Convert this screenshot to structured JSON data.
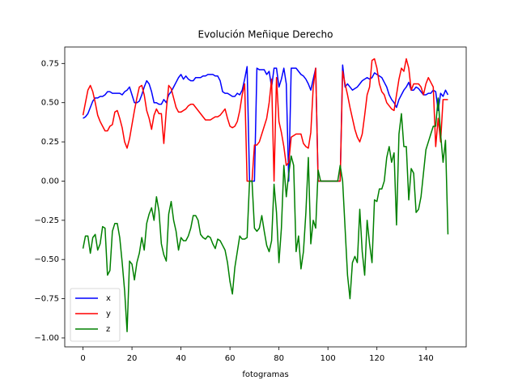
{
  "chart_data": {
    "type": "line",
    "title": "Evolución Meñique Derecho",
    "x_label": "fotogramas",
    "x": [
      0,
      1,
      2,
      3,
      4,
      5,
      6,
      7,
      8,
      9,
      10,
      11,
      12,
      13,
      14,
      15,
      16,
      17,
      18,
      19,
      20,
      21,
      22,
      23,
      24,
      25,
      26,
      27,
      28,
      29,
      30,
      31,
      32,
      33,
      34,
      35,
      36,
      37,
      38,
      39,
      40,
      41,
      42,
      43,
      44,
      45,
      46,
      47,
      48,
      49,
      50,
      51,
      52,
      53,
      54,
      55,
      56,
      57,
      58,
      59,
      60,
      61,
      62,
      63,
      64,
      65,
      66,
      67,
      68,
      69,
      70,
      71,
      72,
      73,
      74,
      75,
      76,
      77,
      78,
      79,
      80,
      81,
      82,
      83,
      84,
      85,
      86,
      87,
      88,
      89,
      90,
      91,
      92,
      93,
      94,
      95,
      96,
      97,
      98,
      99,
      100,
      101,
      102,
      103,
      104,
      105,
      106,
      107,
      108,
      109,
      110,
      111,
      112,
      113,
      114,
      115,
      116,
      117,
      118,
      119,
      120,
      121,
      122,
      123,
      124,
      125,
      126,
      127,
      128,
      129,
      130,
      131,
      132,
      133,
      134,
      135,
      136,
      137,
      138,
      139,
      140,
      141,
      142,
      143,
      144,
      145,
      146,
      147,
      148,
      149
    ],
    "series": [
      {
        "name": "x",
        "color": "#0000ff",
        "values": [
          0.4,
          0.41,
          0.43,
          0.47,
          0.51,
          0.53,
          0.53,
          0.54,
          0.54,
          0.55,
          0.57,
          0.57,
          0.56,
          0.56,
          0.56,
          0.56,
          0.55,
          0.57,
          0.58,
          0.6,
          0.55,
          0.5,
          0.5,
          0.51,
          0.55,
          0.6,
          0.64,
          0.62,
          0.57,
          0.5,
          0.5,
          0.49,
          0.49,
          0.52,
          0.5,
          0.55,
          0.57,
          0.6,
          0.63,
          0.66,
          0.68,
          0.65,
          0.67,
          0.65,
          0.64,
          0.64,
          0.66,
          0.66,
          0.66,
          0.67,
          0.67,
          0.68,
          0.68,
          0.68,
          0.67,
          0.67,
          0.64,
          0.57,
          0.56,
          0.56,
          0.55,
          0.54,
          0.54,
          0.56,
          0.55,
          0.58,
          0.65,
          0.73,
          0.0,
          0.0,
          0.0,
          0.72,
          0.71,
          0.71,
          0.71,
          0.68,
          0.7,
          0.6,
          0.72,
          0.72,
          0.6,
          0.65,
          0.72,
          0.62,
          0.0,
          0.72,
          0.72,
          0.72,
          0.7,
          0.68,
          0.67,
          0.65,
          0.62,
          0.58,
          0.65,
          0.72,
          0.0,
          0.0,
          0.0,
          0.0,
          0.0,
          0.0,
          0.0,
          0.0,
          0.0,
          0.0,
          0.74,
          0.6,
          0.62,
          0.6,
          0.58,
          0.59,
          0.6,
          0.62,
          0.64,
          0.65,
          0.66,
          0.65,
          0.66,
          0.69,
          0.68,
          0.67,
          0.66,
          0.63,
          0.6,
          0.55,
          0.52,
          0.5,
          0.47,
          0.52,
          0.55,
          0.58,
          0.6,
          0.63,
          0.58,
          0.58,
          0.6,
          0.59,
          0.57,
          0.55,
          0.55,
          0.56,
          0.56,
          0.58,
          0.57,
          0.45,
          0.56,
          0.54,
          0.58,
          0.55
        ]
      },
      {
        "name": "y",
        "color": "#ff0000",
        "values": [
          0.42,
          0.5,
          0.58,
          0.61,
          0.57,
          0.5,
          0.42,
          0.38,
          0.35,
          0.32,
          0.32,
          0.35,
          0.36,
          0.44,
          0.45,
          0.4,
          0.34,
          0.25,
          0.21,
          0.27,
          0.36,
          0.45,
          0.53,
          0.6,
          0.61,
          0.55,
          0.45,
          0.4,
          0.33,
          0.42,
          0.46,
          0.43,
          0.43,
          0.24,
          0.45,
          0.61,
          0.59,
          0.53,
          0.47,
          0.44,
          0.44,
          0.45,
          0.46,
          0.48,
          0.49,
          0.49,
          0.47,
          0.45,
          0.43,
          0.41,
          0.39,
          0.39,
          0.39,
          0.4,
          0.41,
          0.41,
          0.42,
          0.44,
          0.46,
          0.4,
          0.35,
          0.34,
          0.35,
          0.38,
          0.45,
          0.55,
          0.62,
          0.0,
          0.0,
          0.0,
          0.23,
          0.23,
          0.25,
          0.3,
          0.35,
          0.4,
          0.5,
          0.65,
          0.0,
          0.66,
          0.38,
          0.31,
          0.22,
          0.1,
          0.12,
          0.28,
          0.29,
          0.3,
          0.3,
          0.3,
          0.24,
          0.22,
          0.21,
          0.31,
          0.6,
          0.72,
          0.0,
          0.0,
          0.0,
          0.0,
          0.0,
          0.0,
          0.0,
          0.0,
          0.0,
          0.0,
          0.7,
          0.62,
          0.55,
          0.47,
          0.4,
          0.33,
          0.28,
          0.25,
          0.3,
          0.42,
          0.55,
          0.6,
          0.77,
          0.78,
          0.72,
          0.62,
          0.57,
          0.55,
          0.5,
          0.48,
          0.46,
          0.45,
          0.55,
          0.65,
          0.72,
          0.7,
          0.78,
          0.72,
          0.58,
          0.62,
          0.62,
          0.62,
          0.6,
          0.55,
          0.62,
          0.66,
          0.63,
          0.6,
          0.22,
          0.4,
          0.25,
          0.52,
          0.52,
          0.52
        ]
      },
      {
        "name": "z",
        "color": "#008000",
        "values": [
          -0.43,
          -0.35,
          -0.35,
          -0.46,
          -0.36,
          -0.34,
          -0.44,
          -0.4,
          -0.29,
          -0.3,
          -0.6,
          -0.57,
          -0.32,
          -0.27,
          -0.27,
          -0.36,
          -0.52,
          -0.7,
          -0.96,
          -0.51,
          -0.53,
          -0.63,
          -0.52,
          -0.46,
          -0.36,
          -0.44,
          -0.27,
          -0.21,
          -0.17,
          -0.25,
          -0.1,
          -0.19,
          -0.4,
          -0.47,
          -0.51,
          -0.21,
          -0.13,
          -0.25,
          -0.32,
          -0.44,
          -0.36,
          -0.38,
          -0.38,
          -0.35,
          -0.3,
          -0.22,
          -0.22,
          -0.25,
          -0.34,
          -0.36,
          -0.37,
          -0.35,
          -0.36,
          -0.4,
          -0.43,
          -0.37,
          -0.38,
          -0.41,
          -0.44,
          -0.52,
          -0.64,
          -0.72,
          -0.55,
          -0.45,
          -0.35,
          -0.37,
          -0.37,
          -0.36,
          0.0,
          0.0,
          -0.3,
          -0.32,
          -0.3,
          -0.22,
          -0.32,
          -0.41,
          -0.45,
          -0.38,
          -0.02,
          -0.2,
          -0.52,
          -0.3,
          0.1,
          -0.1,
          0.05,
          0.16,
          0.1,
          -0.45,
          -0.35,
          -0.56,
          -0.45,
          -0.2,
          0.15,
          -0.4,
          -0.25,
          -0.3,
          0.07,
          0.0,
          0.0,
          0.0,
          0.0,
          0.0,
          0.0,
          0.0,
          0.0,
          0.1,
          0.0,
          -0.3,
          -0.6,
          -0.75,
          -0.52,
          -0.48,
          -0.52,
          -0.18,
          -0.45,
          -0.6,
          -0.25,
          -0.4,
          -0.52,
          -0.12,
          -0.13,
          -0.05,
          -0.05,
          0.0,
          0.15,
          0.22,
          0.12,
          0.18,
          -0.28,
          0.3,
          0.43,
          0.22,
          0.22,
          -0.12,
          0.08,
          0.05,
          -0.2,
          -0.18,
          -0.1,
          0.05,
          0.2,
          0.25,
          0.3,
          0.35,
          0.35,
          0.53,
          0.3,
          0.12,
          0.26,
          -0.34
        ]
      }
    ],
    "xlim": [
      -7.45,
      156.45
    ],
    "xticks": [
      0,
      20,
      40,
      60,
      80,
      100,
      120,
      140
    ],
    "ylim": [
      -1.057,
      0.855
    ],
    "yticks": [
      {
        "value": -1,
        "label": "−1.00"
      },
      {
        "value": -0.75,
        "label": "−0.75"
      },
      {
        "value": -0.5,
        "label": "−0.50"
      },
      {
        "value": -0.25,
        "label": "−0.25"
      },
      {
        "value": 0,
        "label": "0.00"
      },
      {
        "value": 0.25,
        "label": "0.25"
      },
      {
        "value": 0.5,
        "label": "0.50"
      },
      {
        "value": 0.75,
        "label": "0.75"
      }
    ],
    "legend": "lower left"
  }
}
